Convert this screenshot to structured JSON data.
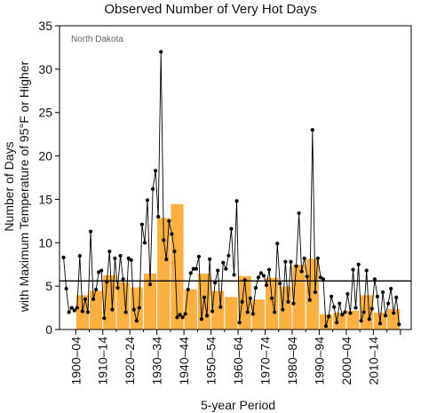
{
  "chart_data": {
    "type": "bar",
    "title": "Observed Number of Very Hot Days",
    "region": "North Dakota",
    "ylabel_line1": "Number of Days",
    "ylabel_line2": "with Maximum Temperature of 95°F or Higher",
    "xlabel": "5-year Period",
    "ylim": [
      0,
      35
    ],
    "yticks": [
      0,
      5,
      10,
      15,
      20,
      25,
      30,
      35
    ],
    "xlim": [
      1900,
      2020
    ],
    "grid": false,
    "period_tick_labels": [
      "1900–04",
      "1910–14",
      "1920–24",
      "1930–34",
      "1940–44",
      "1950–54",
      "1960–64",
      "1970–74",
      "1980–84",
      "1990–94",
      "2000–04",
      "2010–14"
    ],
    "reference_line": 5.6,
    "colors": {
      "bar": "#fbb040",
      "bar_edge": "#ffffff",
      "line": "#000000",
      "point": "#000000",
      "reference": "#000000"
    },
    "series": [
      {
        "type": "bar",
        "periods": [
          "1900–04",
          "1905–09",
          "1910–14",
          "1915–19",
          "1920–24",
          "1925–29",
          "1930–34",
          "1935–39",
          "1940–44",
          "1945–49",
          "1950–54",
          "1955–59",
          "1960–64",
          "1965–69",
          "1970–74",
          "1975–79",
          "1980–84",
          "1985–89",
          "1990–94",
          "1995–99",
          "2000–04",
          "2005–09",
          "2010–14",
          "2015–19"
        ],
        "values": [
          4.0,
          4.5,
          6.3,
          5.5,
          4.9,
          6.5,
          12.9,
          14.5,
          4.7,
          6.5,
          4.5,
          3.8,
          6.2,
          3.5,
          6.0,
          5.0,
          7.5,
          8.2,
          1.8,
          2.0,
          2.2,
          4.0,
          2.0,
          2.4
        ]
      },
      {
        "type": "line",
        "years": [
          1895,
          1896,
          1897,
          1898,
          1899,
          1900,
          1901,
          1902,
          1903,
          1904,
          1905,
          1906,
          1907,
          1908,
          1909,
          1910,
          1911,
          1912,
          1913,
          1914,
          1915,
          1916,
          1917,
          1918,
          1919,
          1920,
          1921,
          1922,
          1923,
          1924,
          1925,
          1926,
          1927,
          1928,
          1929,
          1930,
          1931,
          1932,
          1933,
          1934,
          1935,
          1936,
          1937,
          1938,
          1939,
          1940,
          1941,
          1942,
          1943,
          1944,
          1945,
          1946,
          1947,
          1948,
          1949,
          1950,
          1951,
          1952,
          1953,
          1954,
          1955,
          1956,
          1957,
          1958,
          1959,
          1960,
          1961,
          1962,
          1963,
          1964,
          1965,
          1966,
          1967,
          1968,
          1969,
          1970,
          1971,
          1972,
          1973,
          1974,
          1975,
          1976,
          1977,
          1978,
          1979,
          1980,
          1981,
          1982,
          1983,
          1984,
          1985,
          1986,
          1987,
          1988,
          1989,
          1990,
          1991,
          1992,
          1993,
          1994,
          1995,
          1996,
          1997,
          1998,
          1999,
          2000,
          2001,
          2002,
          2003,
          2004,
          2005,
          2006,
          2007,
          2008,
          2009,
          2010,
          2011,
          2012,
          2013,
          2014,
          2015,
          2016,
          2017,
          2018,
          2019
        ],
        "values": [
          8.3,
          4.7,
          2.0,
          2.5,
          2.2,
          2.5,
          8.5,
          2.1,
          3.5,
          2.0,
          11.3,
          3.5,
          4.6,
          6.6,
          6.8,
          1.3,
          5.5,
          9.0,
          2.3,
          8.2,
          4.8,
          8.5,
          5.8,
          2.0,
          8.2,
          8.0,
          2.3,
          1.0,
          2.5,
          12.1,
          10.0,
          14.9,
          5.2,
          16.2,
          18.3,
          13.0,
          32.0,
          10.3,
          8.1,
          12.5,
          11.0,
          9.0,
          1.4,
          1.7,
          1.4,
          1.8,
          4.6,
          6.5,
          7.0,
          7.0,
          8.4,
          1.2,
          3.7,
          1.6,
          8.1,
          2.1,
          5.4,
          6.8,
          2.6,
          7.7,
          7.0,
          8.5,
          11.6,
          6.3,
          14.8,
          0.8,
          3.2,
          5.7,
          2.0,
          3.6,
          1.8,
          4.8,
          6.0,
          6.5,
          6.2,
          5.1,
          6.9,
          3.6,
          2.0,
          9.9,
          5.3,
          2.3,
          7.8,
          3.2,
          7.8,
          3.0,
          7.3,
          13.4,
          6.7,
          8.2,
          6.1,
          3.4,
          23.0,
          4.3,
          8.2,
          6.0,
          5.8,
          0.4,
          1.5,
          3.8,
          2.6,
          0.8,
          3.0,
          1.7,
          2.0,
          4.1,
          1.9,
          6.9,
          2.5,
          7.5,
          1.0,
          2.0,
          6.8,
          1.2,
          2.4,
          5.8,
          3.8,
          0.7,
          4.3,
          1.6,
          3.0,
          4.7,
          1.9,
          3.7,
          0.6
        ]
      }
    ]
  }
}
